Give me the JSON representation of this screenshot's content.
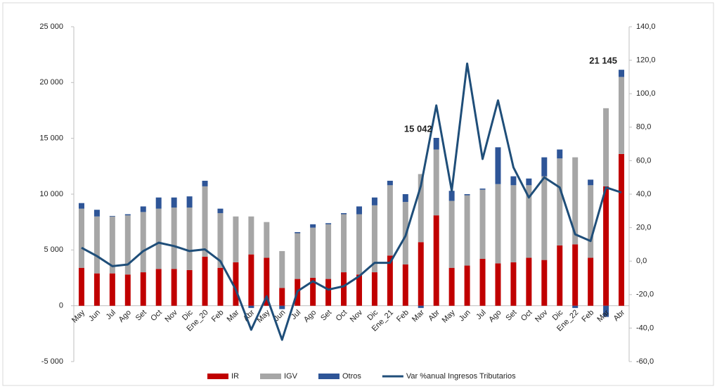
{
  "chart_data": {
    "type": "bar_line",
    "categories": [
      "May",
      "Jun",
      "Jul",
      "Ago",
      "Set",
      "Oct",
      "Nov",
      "Dic",
      "Ene_20",
      "Feb",
      "Mar",
      "Abr",
      "May",
      "Jun",
      "Jul",
      "Ago",
      "Set",
      "Oct",
      "Nov",
      "Dic",
      "Ene_21",
      "Feb",
      "Mar",
      "Abr",
      "May",
      "Jun",
      "Jul",
      "Ago",
      "Set",
      "Oct",
      "Nov",
      "Dic",
      "Ene_22",
      "Feb",
      "Mar",
      "Abr"
    ],
    "series": [
      {
        "name": "IR",
        "color": "#c00000",
        "values": [
          3400,
          2900,
          2900,
          2800,
          3000,
          3300,
          3300,
          3200,
          4400,
          3400,
          3900,
          4600,
          4300,
          1600,
          2400,
          2500,
          2400,
          3000,
          2800,
          3000,
          4500,
          3700,
          5700,
          8100,
          3400,
          3600,
          4200,
          3800,
          3900,
          4300,
          4100,
          5400,
          5500,
          4300,
          10700,
          13600
        ]
      },
      {
        "name": "IGV",
        "color": "#a6a6a6",
        "values": [
          5300,
          5100,
          5100,
          5300,
          5400,
          5400,
          5500,
          5600,
          6300,
          4900,
          4100,
          3400,
          3200,
          3300,
          4100,
          4500,
          4900,
          5200,
          5400,
          6000,
          6300,
          5600,
          6100,
          5900,
          6000,
          6300,
          6200,
          7100,
          6900,
          6500,
          7500,
          7800,
          7800,
          6500,
          7000,
          6900
        ]
      },
      {
        "name": "Otros",
        "color": "#2e5597",
        "values": [
          500,
          600,
          50,
          100,
          500,
          1000,
          900,
          1000,
          500,
          400,
          0,
          -200,
          0,
          -300,
          100,
          300,
          100,
          100,
          700,
          700,
          400,
          700,
          -200,
          1042,
          900,
          100,
          100,
          3300,
          800,
          600,
          1700,
          800,
          -200,
          500,
          -1000,
          645
        ]
      },
      {
        "name": "Var %anual Ingresos Tributarios",
        "color": "#1f4e79",
        "axis": "y2",
        "type": "line",
        "values": [
          8,
          3,
          -3,
          -2,
          6,
          11,
          9,
          6,
          7,
          0,
          -17,
          -41,
          -21,
          -47,
          -18,
          -12,
          -17,
          -15,
          -9,
          -1,
          -1,
          15,
          45,
          93,
          42,
          118,
          61,
          96,
          56,
          38,
          50,
          44,
          16,
          12,
          44,
          41
        ]
      }
    ],
    "annotations": [
      {
        "label": "15 042",
        "value": 15042,
        "category_index": 23
      },
      {
        "label": "21 145",
        "value": 21145,
        "category_index": 35
      }
    ],
    "ylim": [
      -5000,
      25000
    ],
    "yticks": [
      {
        "value": -5000,
        "label": "-5 000"
      },
      0,
      {
        "value": 5000,
        "label": "5 000"
      },
      {
        "value": 10000,
        "label": "10 000"
      },
      {
        "value": 15000,
        "label": "15 000"
      },
      {
        "value": 20000,
        "label": "20 000"
      },
      {
        "value": 25000,
        "label": "25 000"
      }
    ],
    "y2lim": [
      -60,
      140
    ],
    "y2ticks": [
      {
        "value": -60,
        "label": "-60,0"
      },
      {
        "value": -40,
        "label": "-40,0"
      },
      {
        "value": -20,
        "label": "-20,0"
      },
      {
        "value": 0,
        "label": "0,0"
      },
      {
        "value": 20,
        "label": "20,0"
      },
      {
        "value": 40,
        "label": "40,0"
      },
      {
        "value": 60,
        "label": "60,0"
      },
      {
        "value": 80,
        "label": "80,0"
      },
      {
        "value": 100,
        "label": "100,0"
      },
      {
        "value": 120,
        "label": "120,0"
      },
      {
        "value": 140,
        "label": "140,0"
      }
    ],
    "legend": "bottom",
    "grid": false
  }
}
